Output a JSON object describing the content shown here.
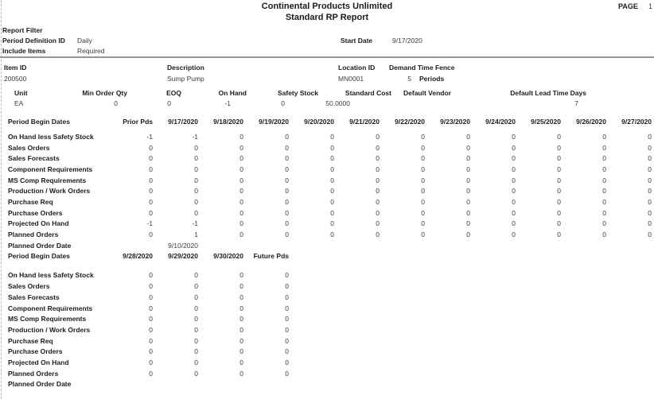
{
  "page": {
    "title_line1": "Continental Products Unlimited",
    "title_line2": "Standard RP Report",
    "page_label": "PAGE",
    "page_number": "1"
  },
  "report_filter": {
    "section_label": "Report Filter",
    "period_definition_label": "Period Definition ID",
    "period_definition_value": "Daily",
    "include_items_label": "Include Items",
    "include_items_value": "Required",
    "start_date_label": "Start Date",
    "start_date_value": "9/17/2020"
  },
  "item": {
    "item_id_label": "Item ID",
    "item_id_value": "200500",
    "description_label": "Description",
    "description_value": "Sump Pump",
    "location_id_label": "Location ID",
    "location_id_value": "MN0001",
    "demand_time_fence_label": "Demand Time Fence",
    "demand_time_fence_value": "5",
    "demand_time_fence_unit": "Periods"
  },
  "item_detail": {
    "headers": [
      "Unit",
      "Min Order Qty",
      "EOQ",
      "On Hand",
      "Safety Stock",
      "Standard Cost",
      "Default Vendor",
      "Default Lead Time Days"
    ],
    "values": [
      "EA",
      "0",
      "0",
      "-1",
      "0",
      "50.0000",
      "",
      "7"
    ]
  },
  "period_tables": [
    {
      "row_header_label": "Period Begin Dates",
      "columns": [
        "Prior Pds",
        "9/17/2020",
        "9/18/2020",
        "9/19/2020",
        "9/20/2020",
        "9/21/2020",
        "9/22/2020",
        "9/23/2020",
        "9/24/2020",
        "9/25/2020",
        "9/26/2020",
        "9/27/2020"
      ],
      "rows": [
        {
          "label": "On Hand less Safety Stock",
          "values": [
            "-1",
            "-1",
            "0",
            "0",
            "0",
            "0",
            "0",
            "0",
            "0",
            "0",
            "0",
            "0"
          ]
        },
        {
          "label": "Sales Orders",
          "values": [
            "0",
            "0",
            "0",
            "0",
            "0",
            "0",
            "0",
            "0",
            "0",
            "0",
            "0",
            "0"
          ]
        },
        {
          "label": "Sales Forecasts",
          "values": [
            "0",
            "0",
            "0",
            "0",
            "0",
            "0",
            "0",
            "0",
            "0",
            "0",
            "0",
            "0"
          ]
        },
        {
          "label": "Component Requirements",
          "values": [
            "0",
            "0",
            "0",
            "0",
            "0",
            "0",
            "0",
            "0",
            "0",
            "0",
            "0",
            "0"
          ]
        },
        {
          "label": "MS Comp Requirements",
          "values": [
            "0",
            "0",
            "0",
            "0",
            "0",
            "0",
            "0",
            "0",
            "0",
            "0",
            "0",
            "0"
          ]
        },
        {
          "label": "Production / Work Orders",
          "values": [
            "0",
            "0",
            "0",
            "0",
            "0",
            "0",
            "0",
            "0",
            "0",
            "0",
            "0",
            "0"
          ]
        },
        {
          "label": "Purchase Req",
          "values": [
            "0",
            "0",
            "0",
            "0",
            "0",
            "0",
            "0",
            "0",
            "0",
            "0",
            "0",
            "0"
          ]
        },
        {
          "label": "Purchase Orders",
          "values": [
            "0",
            "0",
            "0",
            "0",
            "0",
            "0",
            "0",
            "0",
            "0",
            "0",
            "0",
            "0"
          ]
        },
        {
          "label": "Projected On Hand",
          "values": [
            "-1",
            "-1",
            "0",
            "0",
            "0",
            "0",
            "0",
            "0",
            "0",
            "0",
            "0",
            "0"
          ]
        },
        {
          "label": "Planned Orders",
          "values": [
            "0",
            "1",
            "0",
            "0",
            "0",
            "0",
            "0",
            "0",
            "0",
            "0",
            "0",
            "0"
          ]
        },
        {
          "label": "Planned Order Date",
          "values": [
            "",
            "9/10/2020",
            "",
            "",
            "",
            "",
            "",
            "",
            "",
            "",
            "",
            ""
          ]
        }
      ]
    },
    {
      "row_header_label": "Period Begin Dates",
      "columns": [
        "9/28/2020",
        "9/29/2020",
        "9/30/2020",
        "Future Pds"
      ],
      "rows": [
        {
          "label": "On Hand less Safety Stock",
          "values": [
            "0",
            "0",
            "0",
            "0"
          ]
        },
        {
          "label": "Sales Orders",
          "values": [
            "0",
            "0",
            "0",
            "0"
          ]
        },
        {
          "label": "Sales Forecasts",
          "values": [
            "0",
            "0",
            "0",
            "0"
          ]
        },
        {
          "label": "Component Requirements",
          "values": [
            "0",
            "0",
            "0",
            "0"
          ]
        },
        {
          "label": "MS Comp Requirements",
          "values": [
            "0",
            "0",
            "0",
            "0"
          ]
        },
        {
          "label": "Production / Work Orders",
          "values": [
            "0",
            "0",
            "0",
            "0"
          ]
        },
        {
          "label": "Purchase Req",
          "values": [
            "0",
            "0",
            "0",
            "0"
          ]
        },
        {
          "label": "Purchase Orders",
          "values": [
            "0",
            "0",
            "0",
            "0"
          ]
        },
        {
          "label": "Projected On Hand",
          "values": [
            "0",
            "0",
            "0",
            "0"
          ]
        },
        {
          "label": "Planned Orders",
          "values": [
            "0",
            "0",
            "0",
            "0"
          ]
        },
        {
          "label": "Planned Order Date",
          "values": [
            "",
            "",
            "",
            ""
          ]
        }
      ]
    }
  ]
}
